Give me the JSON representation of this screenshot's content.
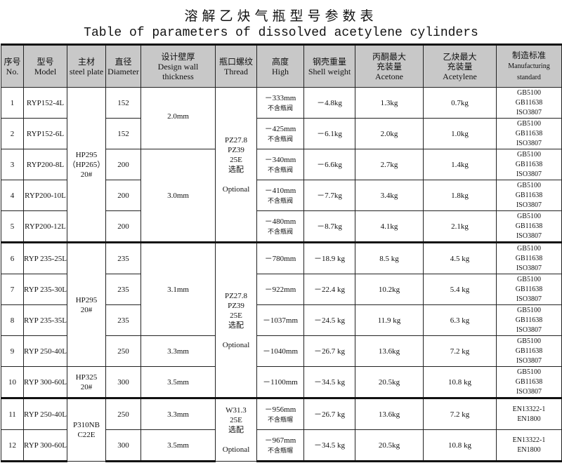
{
  "title_cn": "溶解乙炔气瓶型号参数表",
  "title_en": "Table of parameters of dissolved acetylene cylinders",
  "headers": [
    [
      "序号",
      "No."
    ],
    [
      "型号",
      "Model"
    ],
    [
      "主材",
      "steel plate"
    ],
    [
      "直径",
      "Diameter"
    ],
    [
      "设计壁厚",
      "Design wall thickness"
    ],
    [
      "瓶口螺纹",
      "Thread"
    ],
    [
      "高度",
      "High"
    ],
    [
      "钢壳重量",
      "Shell weight"
    ],
    [
      "丙酮最大",
      "充装量",
      "Acetone"
    ],
    [
      "乙炔最大",
      "充装量",
      "Acetylene"
    ],
    [
      "制造标准",
      "Manufacturing",
      "standard"
    ]
  ],
  "rows": [
    {
      "no": "1",
      "model": "RYP152-4L",
      "diameter": "152",
      "high": "－333mm",
      "high_note": "不含瓶阀",
      "weight": "－4.8kg",
      "acetone": "1.3kg",
      "acetylene": "0.7kg",
      "standard": [
        "GB5100",
        "GB11638",
        "ISO3807"
      ]
    },
    {
      "no": "2",
      "model": "RYP152-6L",
      "diameter": "152",
      "high": "－425mm",
      "high_note": "不含瓶阀",
      "weight": "－6.1kg",
      "acetone": "2.0kg",
      "acetylene": "1.0kg",
      "standard": [
        "GB5100",
        "GB11638",
        "ISO3807"
      ]
    },
    {
      "no": "3",
      "model": "RYP200-8L",
      "diameter": "200",
      "high": "－340mm",
      "high_note": "不含瓶阀",
      "weight": "－6.6kg",
      "acetone": "2.7kg",
      "acetylene": "1.4kg",
      "standard": [
        "GB5100",
        "GB11638",
        "ISO3807"
      ]
    },
    {
      "no": "4",
      "model": "RYP200-10L",
      "diameter": "200",
      "high": "－410mm",
      "high_note": "不含瓶阀",
      "weight": "－7.7kg",
      "acetone": "3.4kg",
      "acetylene": "1.8kg",
      "standard": [
        "GB5100",
        "GB11638",
        "ISO3807"
      ]
    },
    {
      "no": "5",
      "model": "RYP200-12L",
      "diameter": "200",
      "high": "－480mm",
      "high_note": "不含瓶阀",
      "weight": "－8.7kg",
      "acetone": "4.1kg",
      "acetylene": "2.1kg",
      "standard": [
        "GB5100",
        "GB11638",
        "ISO3807"
      ]
    },
    {
      "no": "6",
      "model": "RYP 235-25L",
      "diameter": "235",
      "high": "－780mm",
      "high_note": "",
      "weight": "－18.9 kg",
      "acetone": "8.5 kg",
      "acetylene": "4.5 kg",
      "standard": [
        "GB5100",
        "GB11638",
        "ISO3807"
      ]
    },
    {
      "no": "7",
      "model": "RYP 235-30L",
      "diameter": "235",
      "high": "－922mm",
      "high_note": "",
      "weight": "－22.4 kg",
      "acetone": "10.2kg",
      "acetylene": "5.4 kg",
      "standard": [
        "GB5100",
        "GB11638",
        "ISO3807"
      ]
    },
    {
      "no": "8",
      "model": "RYP 235-35L",
      "diameter": "235",
      "high": "－1037mm",
      "high_note": "",
      "weight": "－24.5 kg",
      "acetone": "11.9 kg",
      "acetylene": "6.3 kg",
      "standard": [
        "GB5100",
        "GB11638",
        "ISO3807"
      ]
    },
    {
      "no": "9",
      "model": "RYP 250-40L",
      "diameter": "250",
      "high": "－1040mm",
      "high_note": "",
      "weight": "－26.7 kg",
      "acetone": "13.6kg",
      "acetylene": "7.2 kg",
      "standard": [
        "GB5100",
        "GB11638",
        "ISO3807"
      ]
    },
    {
      "no": "10",
      "model": "RYP 300-60L",
      "diameter": "300",
      "high": "－1100mm",
      "high_note": "",
      "weight": "－34.5 kg",
      "acetone": "20.5kg",
      "acetylene": "10.8 kg",
      "standard": [
        "GB5100",
        "GB11638",
        "ISO3807"
      ]
    },
    {
      "no": "11",
      "model": "RYP 250-40L",
      "diameter": "250",
      "high": "－956mm",
      "high_note": "不含瓶帽",
      "weight": "－26.7 kg",
      "acetone": "13.6kg",
      "acetylene": "7.2 kg",
      "standard": [
        "EN13322-1",
        "EN1800"
      ]
    },
    {
      "no": "12",
      "model": "RYP 300-60L",
      "diameter": "300",
      "high": "－967mm",
      "high_note": "不含瓶帽",
      "weight": "－34.5 kg",
      "acetone": "20.5kg",
      "acetylene": "10.8 kg",
      "standard": [
        "EN13322-1",
        "EN1800"
      ]
    }
  ],
  "steel_plate": [
    {
      "start": 0,
      "span": 5,
      "lines": [
        "HP295",
        "（HP265）",
        "20#"
      ]
    },
    {
      "start": 5,
      "span": 4,
      "lines": [
        "HP295",
        "20#"
      ]
    },
    {
      "start": 9,
      "span": 1,
      "lines": [
        "HP325",
        "20#"
      ]
    },
    {
      "start": 10,
      "span": 2,
      "lines": [
        "P310NB",
        "C22E"
      ]
    }
  ],
  "wall": [
    {
      "start": 0,
      "span": 2,
      "text": "2.0mm"
    },
    {
      "start": 2,
      "span": 3,
      "text": "3.0mm"
    },
    {
      "start": 5,
      "span": 3,
      "text": "3.1mm"
    },
    {
      "start": 8,
      "span": 1,
      "text": "3.3mm"
    },
    {
      "start": 9,
      "span": 1,
      "text": "3.5mm"
    },
    {
      "start": 10,
      "span": 1,
      "text": "3.3mm"
    },
    {
      "start": 11,
      "span": 1,
      "text": "3.5mm"
    }
  ],
  "thread": [
    {
      "start": 0,
      "span": 5,
      "lines": [
        "PZ27.8",
        "PZ39",
        "25E",
        "选配",
        "",
        "Optional"
      ]
    },
    {
      "start": 5,
      "span": 5,
      "lines": [
        "PZ27.8",
        "PZ39",
        "25E",
        "选配",
        "",
        "Optional"
      ]
    },
    {
      "start": 10,
      "span": 2,
      "lines": [
        "W31.3",
        "25E",
        "选配",
        "",
        "Optional"
      ]
    }
  ]
}
